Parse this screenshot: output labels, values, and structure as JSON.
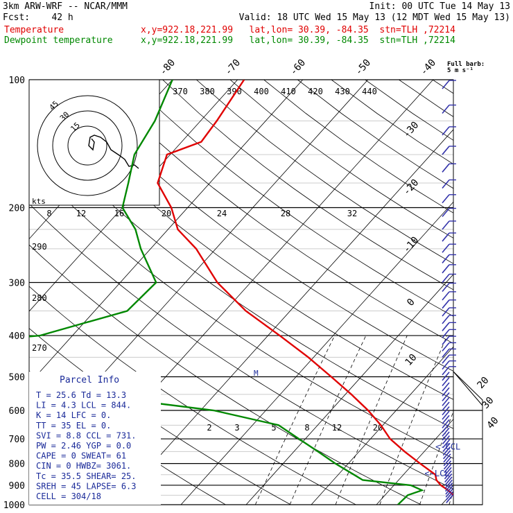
{
  "header": {
    "model": "3km ARW-WRF -- NCAR/MMM",
    "init": "Init: 00 UTC Tue 14 May 13",
    "fcst": "Fcst:    42 h",
    "valid": "Valid: 18 UTC Wed 15 May 13 (12 MDT Wed 15 May 13)",
    "temp_label": "Temperature",
    "temp_info": "x,y=922.18,221.99   lat,lon= 30.39, -84.35  stn=TLH ,72214",
    "dew_label": "Dewpoint temperature",
    "dew_info": "x,y=922.18,221.99   lat,lon= 30.39, -84.35  stn=TLH ,72214"
  },
  "colors": {
    "temperature": "#e00000",
    "dewpoint": "#008800",
    "wind": "#3333aa",
    "indices": "#1a2a99"
  },
  "chart_data": {
    "type": "line",
    "subtype": "skew-T log-P sounding",
    "pressure_levels_hpa": [
      100,
      200,
      300,
      400,
      500,
      600,
      700,
      800,
      900,
      1000
    ],
    "isotherm_labels_c": [
      "-80",
      "-70",
      "-60",
      "-50",
      "-40",
      "-30",
      "-20",
      "-10",
      "0",
      "10",
      "20",
      "30",
      "40"
    ],
    "theta_labels_k": [
      "370",
      "380",
      "390",
      "400",
      "410",
      "420",
      "430",
      "440"
    ],
    "mixing_ratio_labels_top": [
      "8",
      "12",
      "16",
      "20",
      "24",
      "28",
      "32"
    ],
    "mixing_ratio_labels_bottom": [
      "2",
      "3",
      "5",
      "8",
      "12",
      "20"
    ],
    "dry_adiabat_side_labels": [
      "290",
      "280",
      "270"
    ],
    "wind_barb_note": [
      "Full barb:",
      "5 m s⁻¹"
    ],
    "hodograph": {
      "unit_label": "kts",
      "ring_labels": [
        "15",
        "30",
        "45"
      ]
    },
    "series": [
      {
        "name": "Temperature",
        "p": [
          1000,
          975,
          950,
          925,
          900,
          875,
          850,
          800,
          750,
          700,
          650,
          600,
          550,
          500,
          450,
          400,
          350,
          300,
          250,
          225,
          200,
          175,
          150,
          140,
          125,
          100
        ],
        "t": [
          25.6,
          22.5,
          20.5,
          19.0,
          17.2,
          15.8,
          14.9,
          11.0,
          7.0,
          3.0,
          -0.3,
          -4.3,
          -9.1,
          -14.6,
          -20.8,
          -28.2,
          -36.8,
          -45.1,
          -53.0,
          -58.5,
          -62.5,
          -68.0,
          -70.5,
          -67.0,
          -67.5,
          -69.0
        ]
      },
      {
        "name": "Dewpoint temperature",
        "p": [
          1000,
          950,
          925,
          900,
          875,
          850,
          800,
          750,
          700,
          650,
          600,
          550,
          500,
          450,
          400,
          350,
          300,
          250,
          225,
          200,
          175,
          150,
          125,
          100
        ],
        "td": [
          13.3,
          13.5,
          15.0,
          12.6,
          4.5,
          2.4,
          -2.0,
          -6.3,
          -11.0,
          -16.0,
          -28.0,
          -50.0,
          -58.0,
          -100.0,
          -65.0,
          -55.0,
          -54.5,
          -61.5,
          -65.0,
          -70.0,
          -72.5,
          -75.5,
          -77.0,
          -80.0
        ]
      }
    ],
    "parcel_markers": [
      {
        "label": "<-CCL",
        "p": 731
      },
      {
        "label": "<-LCL",
        "p": 844
      }
    ],
    "freezing_marker": {
      "label": "M",
      "p": 490
    }
  },
  "parcel_info": {
    "title": "Parcel Info",
    "rows": [
      "T  =   25.6  Td =  13.3",
      "LI =    4.3  LCL =  844.",
      "K  =     14  LFC =    0.",
      "TT =     35  EL  =    0.",
      "SVI =   8.8  CCL =  731.",
      "PW =   2.46  YGP =   0.0",
      "CAPE =    0  SWEAT=   61",
      "CIN  =    0  HWBZ= 3061.",
      "Tc  =  35.5  SHEAR=  25.",
      "SREH =   45  LAPSE=  6.3",
      "CELL = 304/18"
    ]
  }
}
